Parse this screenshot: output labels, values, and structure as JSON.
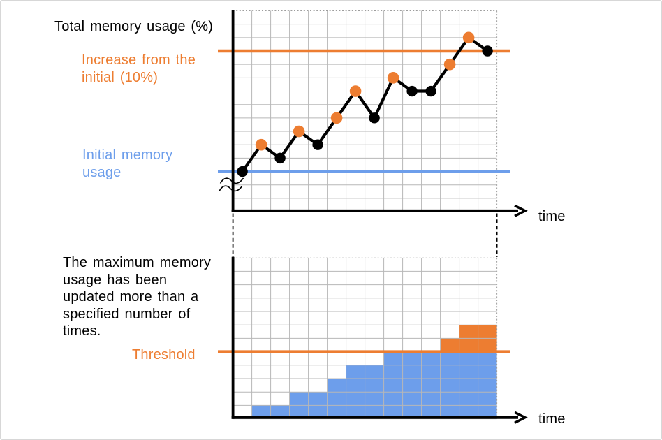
{
  "colors": {
    "orange": "#ED7D31",
    "blue": "#6D9EEB",
    "series_line": "#000000",
    "grid": "#b7b7b7",
    "grid_dotted": "#9d9d9d",
    "axis": "#000000",
    "text": "#000000"
  },
  "top_chart": {
    "title": "Total memory usage (%)",
    "increase_label_lines": [
      "Increase from the",
      "initial (10%)"
    ],
    "initial_label_lines": [
      "Initial memory",
      "usage"
    ],
    "time_label": "time"
  },
  "bottom_chart": {
    "description_lines": [
      "The maximum memory",
      "usage has been",
      "updated more than a",
      "specified number of",
      "times."
    ],
    "threshold_label": "Threshold",
    "time_label": "time"
  },
  "chart_data": [
    {
      "type": "line",
      "title": "Total memory usage (%)",
      "xlabel": "time",
      "ylabel": "Total memory usage (%)",
      "x": [
        1,
        2,
        3,
        4,
        5,
        6,
        7,
        8,
        9,
        10,
        11,
        12,
        13,
        14
      ],
      "values": [
        3,
        5,
        4,
        6,
        5,
        7,
        9,
        7,
        10,
        9,
        9,
        11,
        13,
        12
      ],
      "new_max_flags": [
        false,
        true,
        false,
        true,
        false,
        true,
        true,
        false,
        true,
        false,
        false,
        true,
        true,
        false
      ],
      "point_colors": {
        "new_max": "#ED7D31",
        "normal": "#000000"
      },
      "reference_lines": [
        {
          "name": "Initial memory usage",
          "y": 3,
          "color": "#6D9EEB"
        },
        {
          "name": "Increase from the initial (10%)",
          "y": 12,
          "color": "#ED7D31"
        }
      ],
      "grid": {
        "cols": 14,
        "rows": 15
      },
      "axis_break": true,
      "legend_position": "none"
    },
    {
      "type": "bar",
      "title": "Count of maximum-memory updates over time",
      "xlabel": "time",
      "x": [
        1,
        2,
        3,
        4,
        5,
        6,
        7,
        8,
        9,
        10,
        11,
        12,
        13,
        14
      ],
      "values": [
        0,
        1,
        1,
        2,
        2,
        3,
        4,
        4,
        5,
        5,
        5,
        6,
        7,
        7
      ],
      "threshold": 5,
      "threshold_label": "Threshold",
      "bar_colors": {
        "below_threshold": "#6D9EEB",
        "above_threshold": "#ED7D31"
      },
      "grid": {
        "cols": 14,
        "rows": 12
      },
      "ylim": [
        0,
        12
      ],
      "legend_position": "none"
    }
  ]
}
